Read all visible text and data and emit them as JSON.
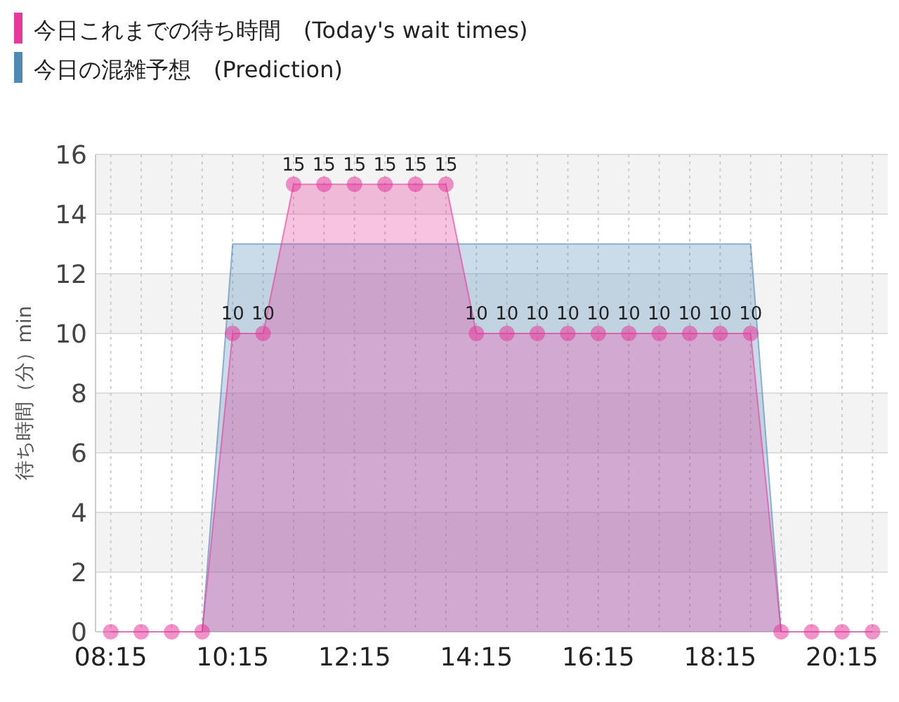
{
  "chart_data": {
    "type": "area",
    "ylabel": "待ち時間（分）min",
    "legend": "top left",
    "grid": true,
    "marker": "circle",
    "xlim": [
      8,
      21
    ],
    "ylim": [
      0,
      16
    ],
    "yticks": [
      0,
      2,
      4,
      6,
      8,
      10,
      12,
      14,
      16
    ],
    "xticks": [
      {
        "value": 8.25,
        "label": "08:15"
      },
      {
        "value": 8.75,
        "label": null
      },
      {
        "value": 9.25,
        "label": null
      },
      {
        "value": 9.75,
        "label": null
      },
      {
        "value": 10.25,
        "label": "10:15"
      },
      {
        "value": 10.75,
        "label": null
      },
      {
        "value": 11.25,
        "label": null
      },
      {
        "value": 11.75,
        "label": null
      },
      {
        "value": 12.25,
        "label": "12:15"
      },
      {
        "value": 12.75,
        "label": null
      },
      {
        "value": 13.25,
        "label": null
      },
      {
        "value": 13.75,
        "label": null
      },
      {
        "value": 14.25,
        "label": "14:15"
      },
      {
        "value": 14.75,
        "label": null
      },
      {
        "value": 15.25,
        "label": null
      },
      {
        "value": 15.75,
        "label": null
      },
      {
        "value": 16.25,
        "label": "16:15"
      },
      {
        "value": 16.75,
        "label": null
      },
      {
        "value": 17.25,
        "label": null
      },
      {
        "value": 17.75,
        "label": null
      },
      {
        "value": 18.25,
        "label": "18:15"
      },
      {
        "value": 18.75,
        "label": null
      },
      {
        "value": 19.25,
        "label": null
      },
      {
        "value": 19.75,
        "label": null
      },
      {
        "value": 20.25,
        "label": "20:15"
      },
      {
        "value": 20.75,
        "label": null
      }
    ],
    "series": [
      {
        "name": "今日の混雑予想　(Prediction)",
        "color": "#4f89b5",
        "marker": "none",
        "x": [
          9.75,
          10.25,
          10.75,
          11.25,
          11.75,
          12.25,
          12.75,
          13.25,
          13.75,
          14.25,
          14.75,
          15.25,
          15.75,
          16.25,
          16.75,
          17.25,
          17.75,
          18.25,
          18.75,
          19.25
        ],
        "values": [
          0,
          13,
          13,
          13,
          13,
          13,
          13,
          13,
          13,
          13,
          13,
          13,
          13,
          13,
          13,
          13,
          13,
          13,
          13,
          0
        ]
      },
      {
        "name": "今日これまでの待ち時間　(Today's wait times)",
        "color": "#e6399b",
        "x": [
          8.25,
          8.75,
          9.25,
          9.75,
          10.25,
          10.75,
          11.25,
          11.75,
          12.25,
          12.75,
          13.25,
          13.75,
          14.25,
          14.75,
          15.25,
          15.75,
          16.25,
          16.75,
          17.25,
          17.75,
          18.25,
          18.75,
          19.25,
          19.75,
          20.25,
          20.75
        ],
        "values": [
          0,
          0,
          0,
          0,
          10,
          10,
          15,
          15,
          15,
          15,
          15,
          15,
          10,
          10,
          10,
          10,
          10,
          10,
          10,
          10,
          10,
          10,
          0,
          0,
          0,
          0
        ],
        "value_labels": [
          null,
          null,
          null,
          null,
          "10",
          "10",
          "15",
          "15",
          "15",
          "15",
          "15",
          "15",
          "10",
          "10",
          "10",
          "10",
          "10",
          "10",
          "10",
          "10",
          "10",
          "10",
          null,
          null,
          null,
          null
        ]
      }
    ]
  }
}
